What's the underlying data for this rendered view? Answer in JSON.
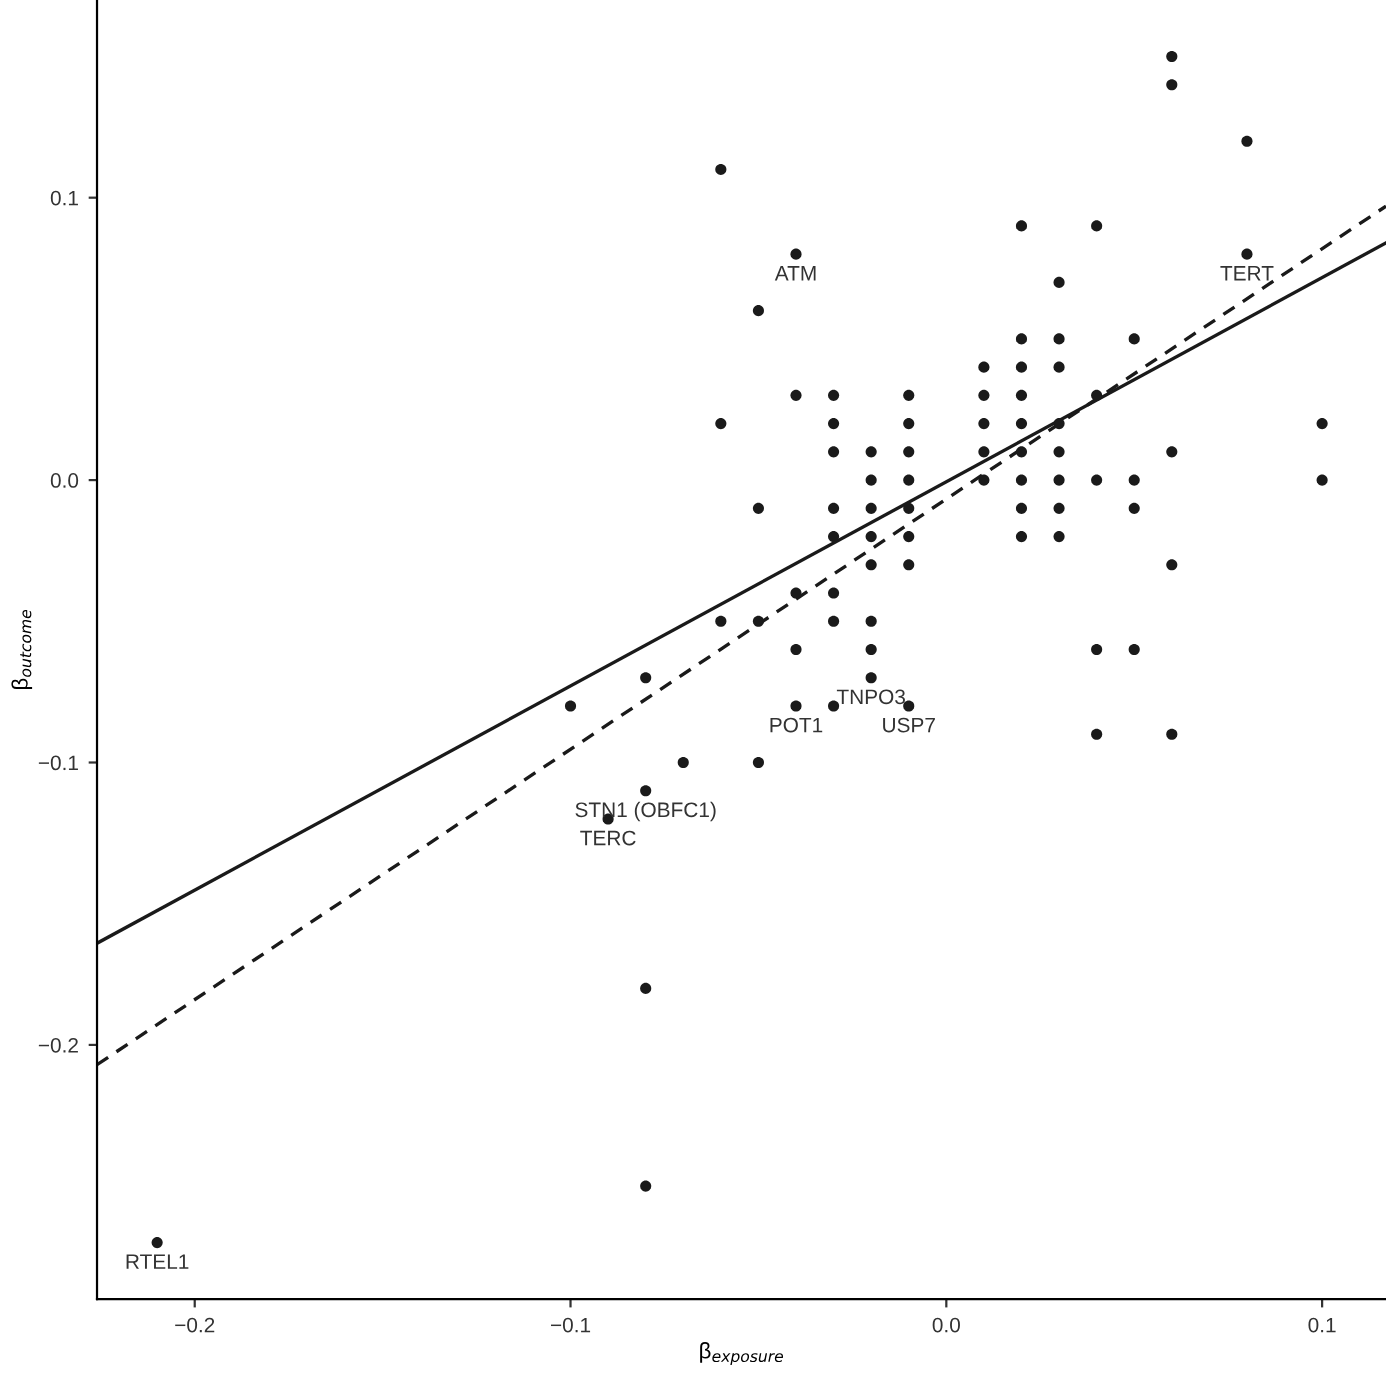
{
  "chart_data": {
    "type": "scatter",
    "xlabel": "β$_{exposure}$",
    "ylabel": "β$_{outcome}$",
    "xlim": [
      -0.226,
      0.117
    ],
    "ylim": [
      -0.29,
      0.17
    ],
    "xticks": [
      {
        "value": -0.2,
        "label": "−0.2"
      },
      {
        "value": -0.1,
        "label": "−0.1"
      },
      {
        "value": 0,
        "label": "0.0"
      },
      {
        "value": 0.1,
        "label": "0.1"
      }
    ],
    "yticks": [
      {
        "value": -0.2,
        "label": "−0.2"
      },
      {
        "value": -0.1,
        "label": "−0.1"
      },
      {
        "value": 0,
        "label": "0.0"
      },
      {
        "value": 0.1,
        "label": "0.1"
      }
    ],
    "grid": false,
    "legend": false,
    "marker": "circle",
    "series": [
      {
        "color": "#1a1a1a",
        "x": [
          -0.21,
          -0.1,
          -0.09,
          -0.08,
          -0.08,
          -0.08,
          -0.08,
          -0.07,
          -0.06,
          -0.06,
          -0.06,
          -0.05,
          -0.05,
          -0.05,
          -0.05,
          -0.04,
          -0.04,
          -0.04,
          -0.04,
          -0.04,
          -0.03,
          -0.03,
          -0.03,
          -0.03,
          -0.03,
          -0.03,
          -0.03,
          -0.03,
          -0.02,
          -0.02,
          -0.02,
          -0.02,
          -0.02,
          -0.02,
          -0.02,
          -0.02,
          -0.01,
          -0.01,
          -0.01,
          -0.01,
          -0.01,
          -0.01,
          -0.01,
          -0.01,
          0.01,
          0.01,
          0.01,
          0.01,
          0.01,
          0.02,
          0.02,
          0.02,
          0.02,
          0.02,
          0.02,
          0.02,
          0.02,
          0.02,
          0.03,
          0.03,
          0.03,
          0.03,
          0.03,
          0.03,
          0.03,
          0.03,
          0.04,
          0.04,
          0.04,
          0.04,
          0.04,
          0.05,
          0.05,
          0.05,
          0.05,
          0.06,
          0.06,
          0.06,
          0.06,
          0.06,
          0.08,
          0.08,
          0.1,
          0.1
        ],
        "values": [
          -0.27,
          -0.08,
          -0.12,
          -0.07,
          -0.11,
          -0.18,
          -0.25,
          -0.1,
          0.11,
          0.02,
          -0.05,
          0.06,
          -0.01,
          -0.05,
          -0.1,
          0.08,
          0.03,
          -0.04,
          -0.06,
          -0.08,
          0.03,
          0.02,
          0.01,
          -0.01,
          -0.02,
          -0.04,
          -0.05,
          -0.08,
          0.01,
          0.0,
          -0.01,
          -0.02,
          -0.03,
          -0.05,
          -0.06,
          -0.07,
          0.03,
          0.02,
          0.01,
          0.0,
          -0.01,
          -0.02,
          -0.03,
          -0.08,
          0.04,
          0.03,
          0.02,
          0.01,
          0.0,
          0.09,
          0.05,
          0.04,
          0.03,
          0.02,
          0.01,
          0.0,
          -0.01,
          -0.02,
          0.07,
          0.05,
          0.04,
          0.02,
          0.01,
          0.0,
          -0.01,
          -0.02,
          0.09,
          0.03,
          0.0,
          -0.06,
          -0.09,
          0.05,
          0.0,
          -0.01,
          -0.06,
          0.15,
          0.14,
          0.01,
          -0.03,
          -0.09,
          0.12,
          0.08,
          0.02,
          0.0
        ]
      },
      {
        "type": "line",
        "color": "#1a1a1a",
        "line_style": "solid",
        "marker": "none",
        "x": [
          -0.226,
          0.117
        ],
        "values": [
          -0.164,
          0.084
        ]
      },
      {
        "type": "line",
        "color": "#1a1a1a",
        "line_style": "dashed",
        "marker": "none",
        "x": [
          -0.226,
          0.117
        ],
        "values": [
          -0.207,
          0.097
        ]
      }
    ],
    "annotations": [
      {
        "text": "RTEL1",
        "x": -0.21,
        "y": -0.27
      },
      {
        "text": "TERC",
        "x": -0.09,
        "y": -0.12
      },
      {
        "text": "STN1 (OBFC1)",
        "x": -0.08,
        "y": -0.11
      },
      {
        "text": "ATM",
        "x": -0.04,
        "y": 0.08
      },
      {
        "text": "POT1",
        "x": -0.04,
        "y": -0.08
      },
      {
        "text": "TNPO3",
        "x": -0.02,
        "y": -0.07
      },
      {
        "text": "USP7",
        "x": -0.01,
        "y": -0.08
      },
      {
        "text": "TERT",
        "x": 0.08,
        "y": 0.08
      }
    ]
  }
}
